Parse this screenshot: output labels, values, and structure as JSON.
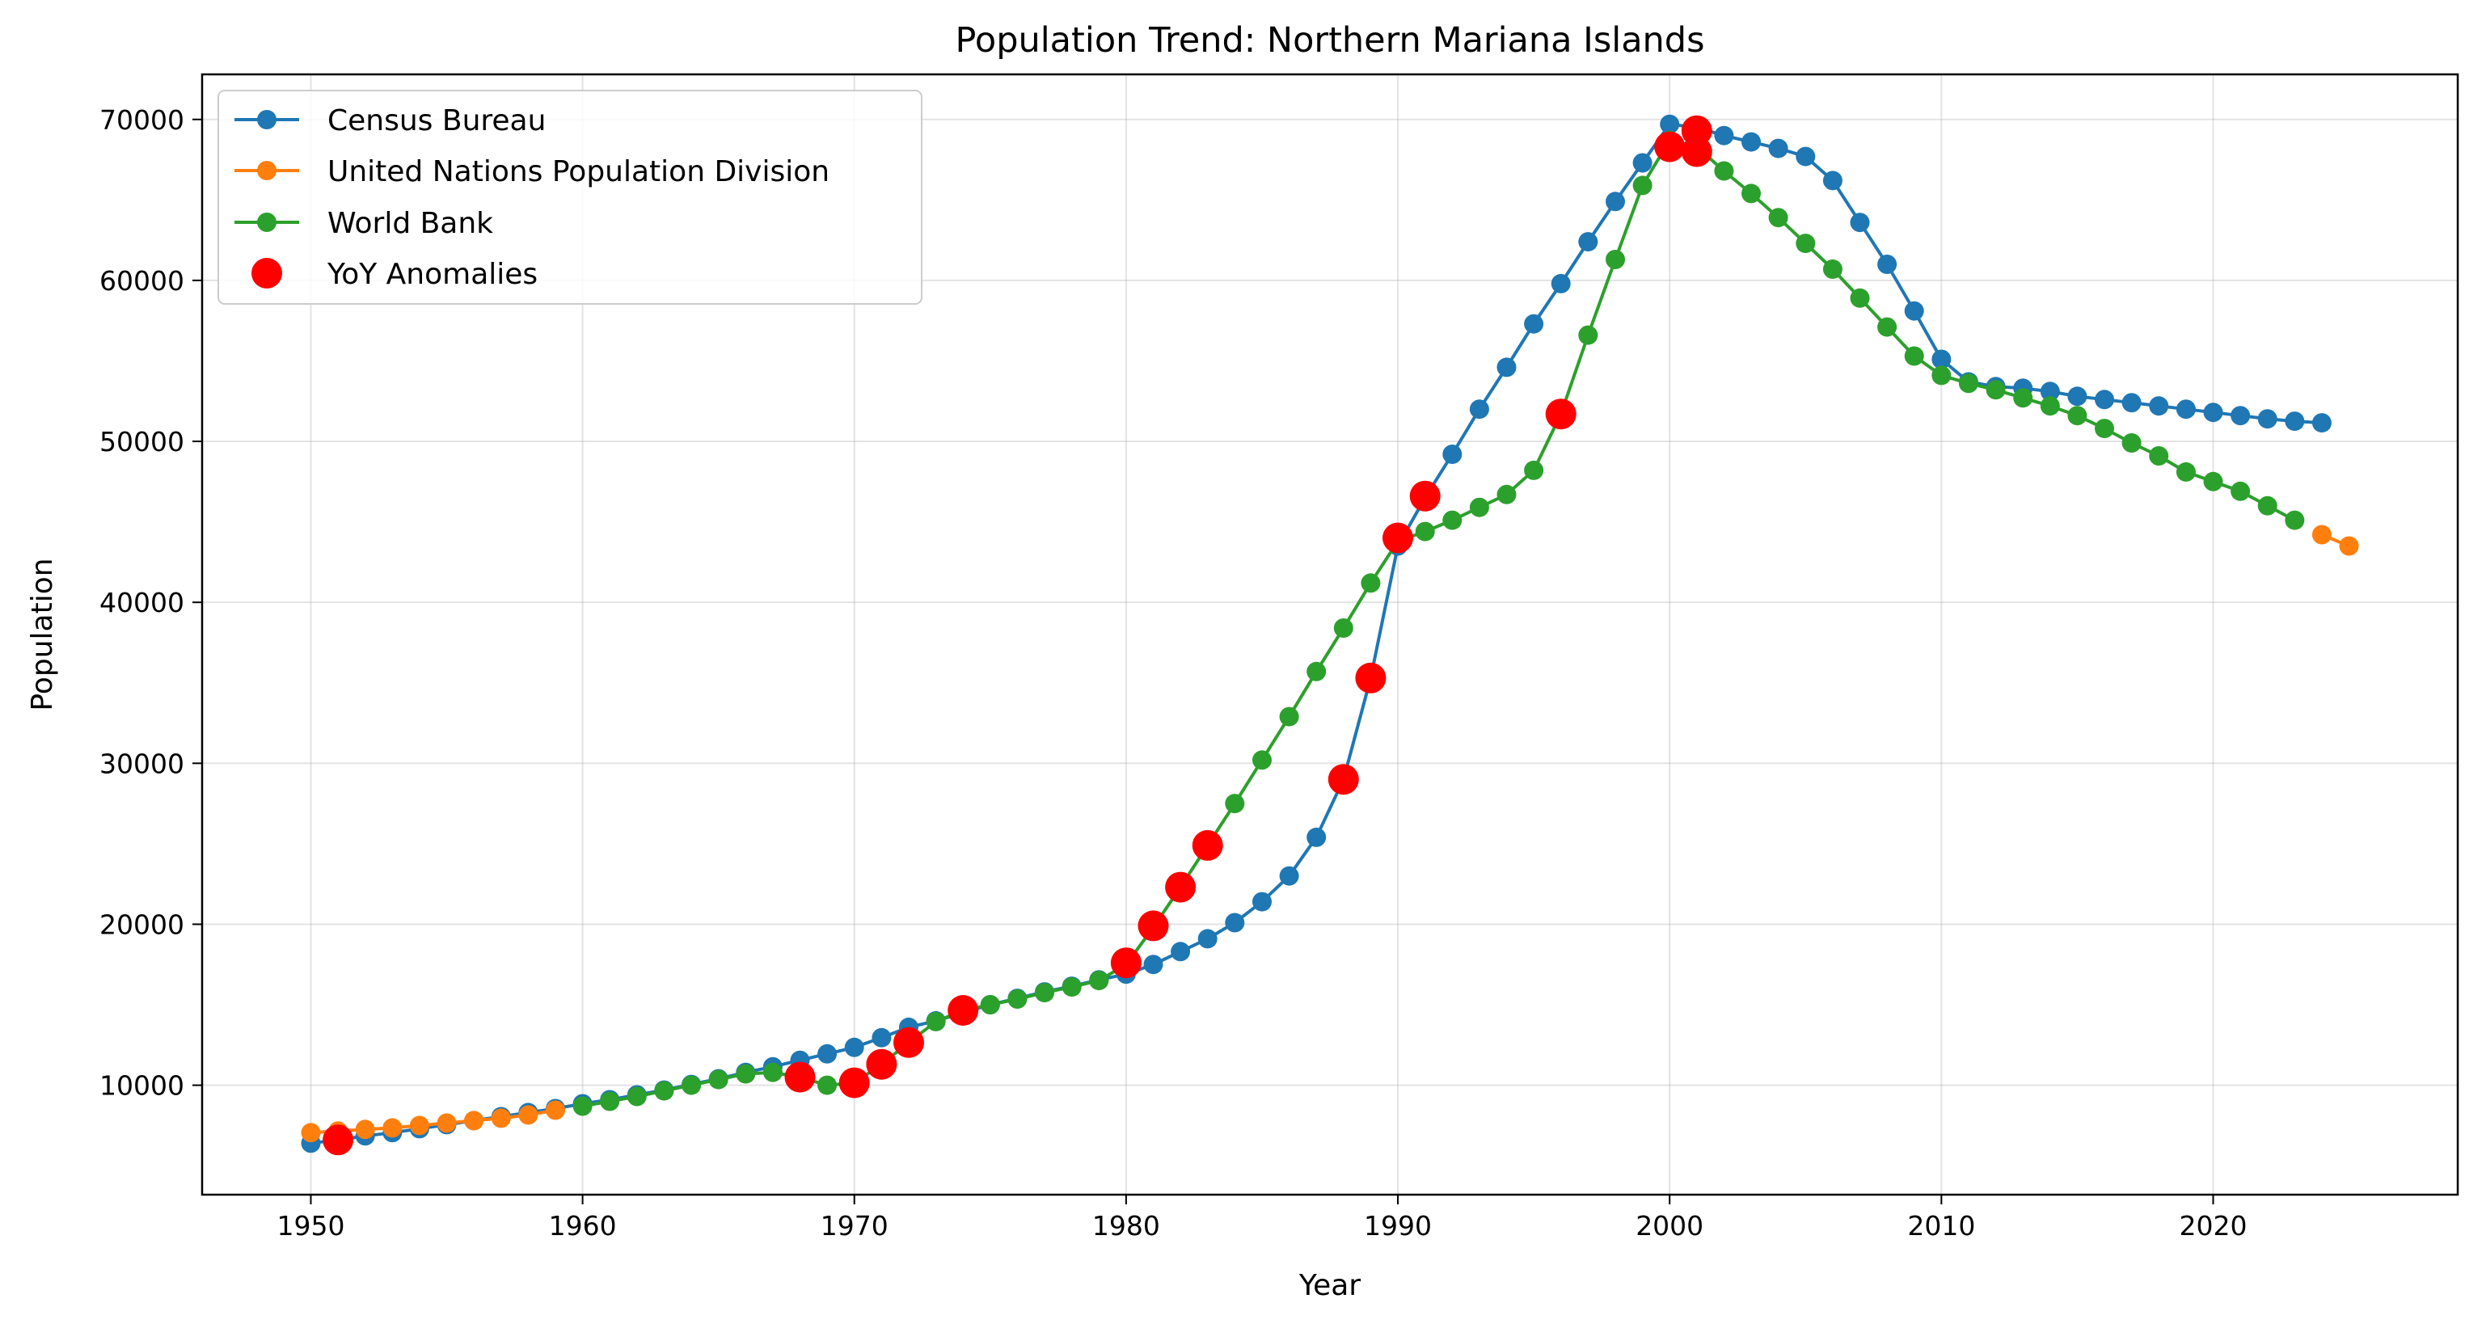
{
  "chart_data": {
    "type": "line",
    "title": "Population Trend: Northern Mariana Islands",
    "xlabel": "Year",
    "ylabel": "Population",
    "xlim": [
      1946,
      2029
    ],
    "ylim": [
      3200,
      72800
    ],
    "xticks": [
      1950,
      1960,
      1970,
      1980,
      1990,
      2000,
      2010,
      2020
    ],
    "yticks": [
      10000,
      20000,
      30000,
      40000,
      50000,
      60000,
      70000
    ],
    "grid": true,
    "legend_position": "top-left",
    "series": [
      {
        "name": "Census Bureau",
        "color": "#1f77b4",
        "x": [
          1950,
          1951,
          1952,
          1953,
          1954,
          1955,
          1956,
          1957,
          1958,
          1959,
          1960,
          1961,
          1962,
          1963,
          1964,
          1965,
          1966,
          1967,
          1968,
          1969,
          1970,
          1971,
          1972,
          1973,
          1974,
          1975,
          1976,
          1977,
          1978,
          1979,
          1980,
          1981,
          1982,
          1983,
          1984,
          1985,
          1986,
          1987,
          1988,
          1989,
          1990,
          1991,
          1992,
          1993,
          1994,
          1995,
          1996,
          1997,
          1998,
          1999,
          2000,
          2001,
          2002,
          2003,
          2004,
          2005,
          2006,
          2007,
          2008,
          2009,
          2010,
          2011,
          2012,
          2013,
          2014,
          2015,
          2016,
          2017,
          2018,
          2019,
          2020,
          2021,
          2022,
          2023,
          2024
        ],
        "values": [
          6400,
          6600,
          6850,
          7050,
          7300,
          7550,
          7800,
          8050,
          8300,
          8550,
          8850,
          9100,
          9400,
          9700,
          10050,
          10400,
          10800,
          11150,
          11550,
          11950,
          12350,
          12950,
          13600,
          14000,
          14500,
          15000,
          15400,
          15800,
          16150,
          16550,
          16900,
          17500,
          18300,
          19100,
          20100,
          21400,
          23000,
          25400,
          29000,
          35300,
          43500,
          46500,
          49200,
          52000,
          54600,
          57300,
          59800,
          62400,
          64900,
          67300,
          69700,
          69500,
          69000,
          68600,
          68200,
          67700,
          66200,
          63600,
          61000,
          58100,
          55100,
          53700,
          53400,
          53300,
          53100,
          52800,
          52600,
          52400,
          52200,
          52000,
          51800,
          51600,
          51400,
          51250,
          51150
        ]
      },
      {
        "name": "United Nations Population Division",
        "color": "#ff7f0e",
        "x": [
          1950,
          1951,
          1952,
          1953,
          1954,
          1955,
          1956,
          1957,
          1958,
          1959,
          2024,
          2025
        ],
        "values": [
          7050,
          7150,
          7250,
          7350,
          7500,
          7650,
          7800,
          7950,
          8150,
          8450,
          44200,
          43500
        ]
      },
      {
        "name": "World Bank",
        "color": "#2ca02c",
        "x": [
          1960,
          1961,
          1962,
          1963,
          1964,
          1965,
          1966,
          1967,
          1968,
          1969,
          1970,
          1971,
          1972,
          1973,
          1974,
          1975,
          1976,
          1977,
          1978,
          1979,
          1980,
          1981,
          1982,
          1983,
          1984,
          1985,
          1986,
          1987,
          1988,
          1989,
          1990,
          1991,
          1992,
          1993,
          1994,
          1995,
          1996,
          1997,
          1998,
          1999,
          2000,
          2001,
          2002,
          2003,
          2004,
          2005,
          2006,
          2007,
          2008,
          2009,
          2010,
          2011,
          2012,
          2013,
          2014,
          2015,
          2016,
          2017,
          2018,
          2019,
          2020,
          2021,
          2022,
          2023
        ],
        "values": [
          8700,
          9000,
          9300,
          9650,
          10000,
          10350,
          10700,
          10800,
          10500,
          10000,
          10150,
          11300,
          12650,
          13950,
          14650,
          15000,
          15350,
          15750,
          16100,
          16500,
          17500,
          19800,
          22300,
          24900,
          27500,
          30200,
          32900,
          35700,
          38400,
          41200,
          43800,
          44400,
          45100,
          45900,
          46700,
          48200,
          51700,
          56600,
          61300,
          65900,
          68700,
          68300,
          66800,
          65400,
          63900,
          62300,
          60700,
          58900,
          57100,
          55300,
          54100,
          53600,
          53200,
          52700,
          52200,
          51600,
          50800,
          49900,
          49100,
          48100,
          47500,
          46900,
          46000,
          45100
        ]
      },
      {
        "name": "YoY Anomalies",
        "color": "#ff0000",
        "x": [
          1951,
          1968,
          1970,
          1971,
          1972,
          1974,
          1980,
          1981,
          1982,
          1983,
          1988,
          1989,
          1990,
          1991,
          1996,
          2000,
          2001,
          2001
        ],
        "values": [
          6600,
          10500,
          10150,
          11300,
          12650,
          14650,
          17600,
          19900,
          22300,
          24900,
          29000,
          35300,
          44000,
          46600,
          51700,
          68300,
          69300,
          68000
        ]
      }
    ]
  }
}
